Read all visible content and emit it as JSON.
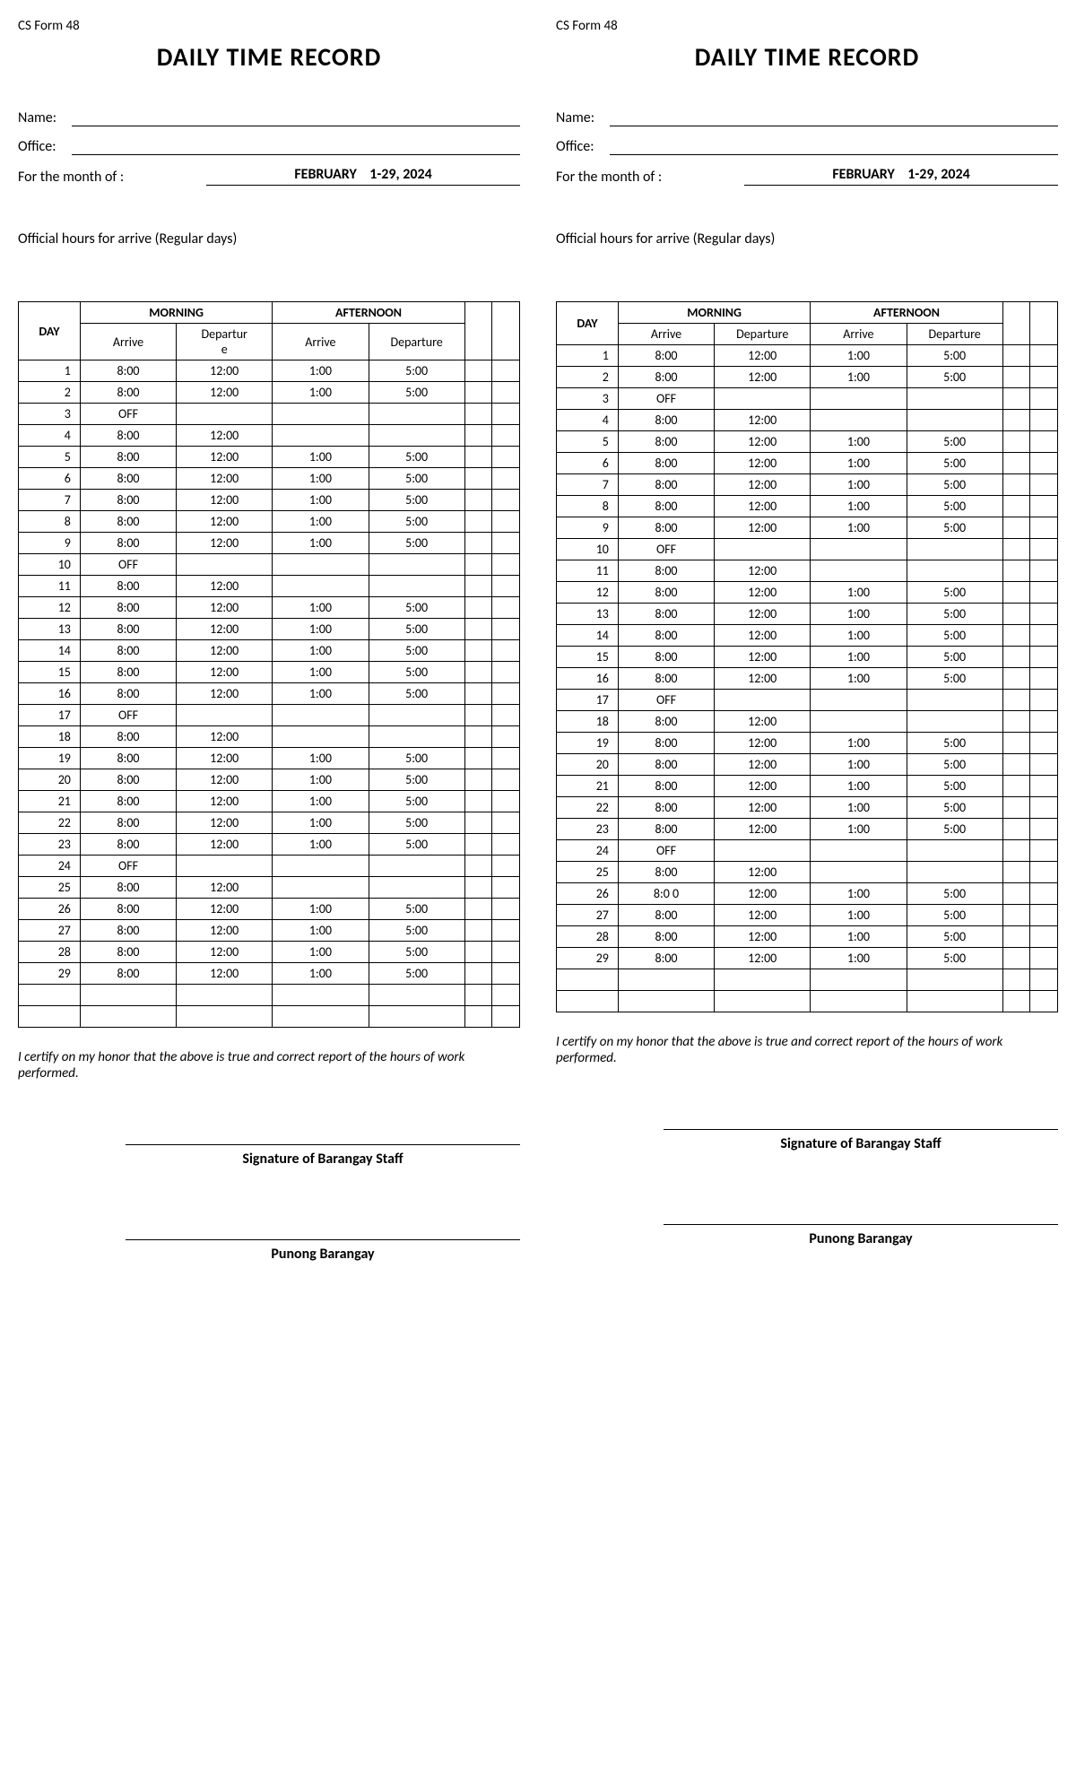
{
  "form_id": "CS Form 48",
  "title": "DAILY TIME RECORD",
  "labels": {
    "name": "Name:",
    "office": "Office:",
    "month": "For the month of :",
    "official_hours": "Official hours for arrive (Regular days)",
    "day": "DAY",
    "morning": "MORNING",
    "afternoon": "AFTERNOON",
    "arrive": "Arrive",
    "departure": "Departure",
    "departure_wrapped_1": "Departur",
    "departure_wrapped_2": "e",
    "cert": "I certify on my honor that the above is true and correct report of the hours of work performed.",
    "sig1": "Signature of Barangay Staff",
    "sig2": "Punong Barangay"
  },
  "month_value": "FEBRUARY    1-29, 2024",
  "left_rows": [
    {
      "d": "1",
      "ma": "8:00",
      "md": "12:00",
      "aa": "1:00",
      "ad": "5:00"
    },
    {
      "d": "2",
      "ma": "8:00",
      "md": "12:00",
      "aa": "1:00",
      "ad": "5:00"
    },
    {
      "d": "3",
      "ma": "OFF",
      "md": "",
      "aa": "",
      "ad": ""
    },
    {
      "d": "4",
      "ma": "8:00",
      "md": "12:00",
      "aa": "",
      "ad": ""
    },
    {
      "d": "5",
      "ma": "8:00",
      "md": "12:00",
      "aa": "1:00",
      "ad": "5:00"
    },
    {
      "d": "6",
      "ma": "8:00",
      "md": "12:00",
      "aa": "1:00",
      "ad": "5:00"
    },
    {
      "d": "7",
      "ma": "8:00",
      "md": "12:00",
      "aa": "1:00",
      "ad": "5:00"
    },
    {
      "d": "8",
      "ma": "8:00",
      "md": "12:00",
      "aa": "1:00",
      "ad": "5:00"
    },
    {
      "d": "9",
      "ma": "8:00",
      "md": "12:00",
      "aa": "1:00",
      "ad": "5:00"
    },
    {
      "d": "10",
      "ma": "OFF",
      "md": "",
      "aa": "",
      "ad": ""
    },
    {
      "d": "11",
      "ma": "8:00",
      "md": "12:00",
      "aa": "",
      "ad": ""
    },
    {
      "d": "12",
      "ma": "8:00",
      "md": "12:00",
      "aa": "1:00",
      "ad": "5:00"
    },
    {
      "d": "13",
      "ma": "8:00",
      "md": "12:00",
      "aa": "1:00",
      "ad": "5:00"
    },
    {
      "d": "14",
      "ma": "8:00",
      "md": "12:00",
      "aa": "1:00",
      "ad": "5:00"
    },
    {
      "d": "15",
      "ma": "8:00",
      "md": "12:00",
      "aa": "1:00",
      "ad": "5:00"
    },
    {
      "d": "16",
      "ma": "8:00",
      "md": "12:00",
      "aa": "1:00",
      "ad": "5:00"
    },
    {
      "d": "17",
      "ma": "OFF",
      "md": "",
      "aa": "",
      "ad": ""
    },
    {
      "d": "18",
      "ma": "8:00",
      "md": "12:00",
      "aa": "",
      "ad": ""
    },
    {
      "d": "19",
      "ma": "8:00",
      "md": "12:00",
      "aa": "1:00",
      "ad": "5:00"
    },
    {
      "d": "20",
      "ma": "8:00",
      "md": "12:00",
      "aa": "1:00",
      "ad": "5:00"
    },
    {
      "d": "21",
      "ma": "8:00",
      "md": "12:00",
      "aa": "1:00",
      "ad": "5:00"
    },
    {
      "d": "22",
      "ma": "8:00",
      "md": "12:00",
      "aa": "1:00",
      "ad": "5:00"
    },
    {
      "d": "23",
      "ma": "8:00",
      "md": "12:00",
      "aa": "1:00",
      "ad": "5:00"
    },
    {
      "d": "24",
      "ma": "OFF",
      "md": "",
      "aa": "",
      "ad": ""
    },
    {
      "d": "25",
      "ma": "8:00",
      "md": "12:00",
      "aa": "",
      "ad": ""
    },
    {
      "d": "26",
      "ma": "8:00",
      "md": "12:00",
      "aa": "1:00",
      "ad": "5:00"
    },
    {
      "d": "27",
      "ma": "8:00",
      "md": "12:00",
      "aa": "1:00",
      "ad": "5:00"
    },
    {
      "d": "28",
      "ma": "8:00",
      "md": "12:00",
      "aa": "1:00",
      "ad": "5:00"
    },
    {
      "d": "29",
      "ma": "8:00",
      "md": "12:00",
      "aa": "1:00",
      "ad": "5:00"
    },
    {
      "d": "",
      "ma": "",
      "md": "",
      "aa": "",
      "ad": ""
    },
    {
      "d": "",
      "ma": "",
      "md": "",
      "aa": "",
      "ad": ""
    }
  ],
  "right_rows": [
    {
      "d": "1",
      "ma": "8:00",
      "md": "12:00",
      "aa": "1:00",
      "ad": "5:00"
    },
    {
      "d": "2",
      "ma": "8:00",
      "md": "12:00",
      "aa": "1:00",
      "ad": "5:00"
    },
    {
      "d": "3",
      "ma": "OFF",
      "md": "",
      "aa": "",
      "ad": ""
    },
    {
      "d": "4",
      "ma": "8:00",
      "md": "12:00",
      "aa": "",
      "ad": ""
    },
    {
      "d": "5",
      "ma": "8:00",
      "md": "12:00",
      "aa": "1:00",
      "ad": "5:00"
    },
    {
      "d": "6",
      "ma": "8:00",
      "md": "12:00",
      "aa": "1:00",
      "ad": "5:00"
    },
    {
      "d": "7",
      "ma": "8:00",
      "md": "12:00",
      "aa": "1:00",
      "ad": "5:00"
    },
    {
      "d": "8",
      "ma": "8:00",
      "md": "12:00",
      "aa": "1:00",
      "ad": "5:00"
    },
    {
      "d": "9",
      "ma": "8:00",
      "md": "12:00",
      "aa": "1:00",
      "ad": "5:00"
    },
    {
      "d": "10",
      "ma": "OFF",
      "md": "",
      "aa": "",
      "ad": ""
    },
    {
      "d": "11",
      "ma": "8:00",
      "md": "12:00",
      "aa": "",
      "ad": ""
    },
    {
      "d": "12",
      "ma": "8:00",
      "md": "12:00",
      "aa": "1:00",
      "ad": "5:00"
    },
    {
      "d": "13",
      "ma": "8:00",
      "md": "12:00",
      "aa": "1:00",
      "ad": "5:00"
    },
    {
      "d": "14",
      "ma": "8:00",
      "md": "12:00",
      "aa": "1:00",
      "ad": "5:00"
    },
    {
      "d": "15",
      "ma": "8:00",
      "md": "12:00",
      "aa": "1:00",
      "ad": "5:00"
    },
    {
      "d": "16",
      "ma": "8:00",
      "md": "12:00",
      "aa": "1:00",
      "ad": "5:00"
    },
    {
      "d": "17",
      "ma": "OFF",
      "md": "",
      "aa": "",
      "ad": ""
    },
    {
      "d": "18",
      "ma": "8:00",
      "md": "12:00",
      "aa": "",
      "ad": ""
    },
    {
      "d": "19",
      "ma": "8:00",
      "md": "12:00",
      "aa": "1:00",
      "ad": "5:00"
    },
    {
      "d": "20",
      "ma": "8:00",
      "md": "12:00",
      "aa": "1:00",
      "ad": "5:00"
    },
    {
      "d": "21",
      "ma": "8:00",
      "md": "12:00",
      "aa": "1:00",
      "ad": "5:00"
    },
    {
      "d": "22",
      "ma": "8:00",
      "md": "12:00",
      "aa": "1:00",
      "ad": "5:00"
    },
    {
      "d": "23",
      "ma": "8:00",
      "md": "12:00",
      "aa": "1:00",
      "ad": "5:00"
    },
    {
      "d": "24",
      "ma": "OFF",
      "md": "",
      "aa": "",
      "ad": ""
    },
    {
      "d": "25",
      "ma": "8:00",
      "md": "12:00",
      "aa": "",
      "ad": ""
    },
    {
      "d": "26",
      "ma": "8:0 0",
      "md": "12:00",
      "aa": "1:00",
      "ad": "5:00"
    },
    {
      "d": "27",
      "ma": "8:00",
      "md": "12:00",
      "aa": "1:00",
      "ad": "5:00"
    },
    {
      "d": "28",
      "ma": "8:00",
      "md": "12:00",
      "aa": "1:00",
      "ad": "5:00"
    },
    {
      "d": "29",
      "ma": "8:00",
      "md": "12:00",
      "aa": "1:00",
      "ad": "5:00"
    },
    {
      "d": "",
      "ma": "",
      "md": "",
      "aa": "",
      "ad": ""
    },
    {
      "d": "",
      "ma": "",
      "md": "",
      "aa": "",
      "ad": ""
    }
  ]
}
